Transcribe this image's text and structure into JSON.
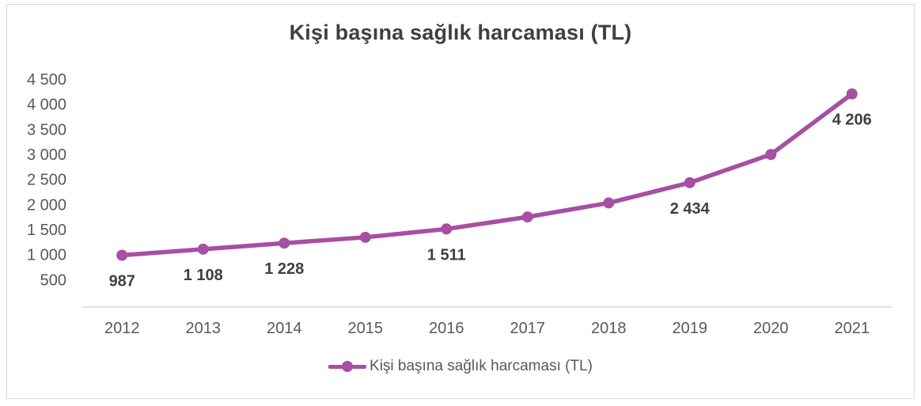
{
  "title": "Kişi başına sağlık harcaması (TL)",
  "legend": {
    "label": "Kişi başına sağlık harcaması (TL)"
  },
  "colors": {
    "series": "#A64FA3",
    "axis_line": "#D9D9D9",
    "frame_border": "#D9D9D9",
    "title_text": "#3F3F3F",
    "tick_text": "#595959",
    "data_label_text": "#3F3F3F"
  },
  "chart_data": {
    "type": "line",
    "title": "Kişi başına sağlık harcaması (TL)",
    "series_name": "Kişi başına sağlık harcaması (TL)",
    "categories": [
      "2012",
      "2013",
      "2014",
      "2015",
      "2016",
      "2017",
      "2018",
      "2019",
      "2020",
      "2021"
    ],
    "values": [
      987,
      1108,
      1228,
      1345,
      1511,
      1751,
      2030,
      2434,
      2997,
      4206
    ],
    "point_labels": [
      "987",
      "1 108",
      "1 228",
      "",
      "1 511",
      "",
      "",
      "2 434",
      "",
      "4 206"
    ],
    "y_ticks": [
      {
        "value": 4500,
        "label": "4 500"
      },
      {
        "value": 4000,
        "label": "4 000"
      },
      {
        "value": 3500,
        "label": "3 500"
      },
      {
        "value": 3000,
        "label": "3 000"
      },
      {
        "value": 2500,
        "label": "2 500"
      },
      {
        "value": 2000,
        "label": "2 000"
      },
      {
        "value": 1500,
        "label": "1 500"
      },
      {
        "value": 1000,
        "label": "1 000"
      },
      {
        "value": 500,
        "label": "500"
      }
    ],
    "ylim": [
      0,
      4500
    ],
    "xlabel": "",
    "ylabel": "",
    "grid": false,
    "marker": "circle",
    "legend_position": "bottom"
  }
}
